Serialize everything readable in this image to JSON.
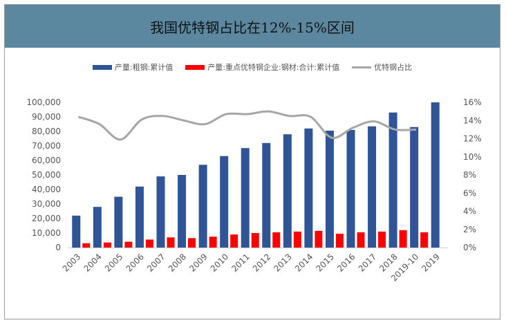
{
  "title": "我国优特钢占比在12%-15%区间",
  "legend": {
    "bar1": "产量:粗钢:累计值",
    "bar2": "产量:重点优特钢企业:钢材:合计:累计值",
    "line": "优特钢占比"
  },
  "colors": {
    "bar1": "#2f5597",
    "bar2": "#ff0000",
    "line": "#a6a6a6",
    "title_band": "#5b879f"
  },
  "chart_data": {
    "type": "bar",
    "categories": [
      "2003",
      "2004",
      "2005",
      "2006",
      "2007",
      "2008",
      "2009",
      "2010",
      "2011",
      "2012",
      "2013",
      "2014",
      "2015",
      "2016",
      "2017",
      "2018",
      "2019-10",
      "2019"
    ],
    "series": [
      {
        "name": "产量:粗钢:累计值",
        "type": "bar",
        "axis": "left",
        "values": [
          22000,
          28000,
          35000,
          42000,
          49000,
          50000,
          57000,
          63000,
          68500,
          72000,
          78000,
          82000,
          80500,
          81000,
          83500,
          93000,
          83000,
          100000
        ]
      },
      {
        "name": "产量:重点优特钢企业:钢材:合计:累计值",
        "type": "bar",
        "axis": "right",
        "values": [
          3000,
          3500,
          4000,
          5500,
          7000,
          6500,
          7500,
          9000,
          10000,
          10500,
          11000,
          11500,
          9500,
          10500,
          11000,
          12000,
          10500,
          null
        ]
      },
      {
        "name": "优特钢占比",
        "type": "line",
        "axis": "right",
        "values": [
          14.4,
          13.6,
          11.9,
          14.1,
          14.5,
          14.0,
          13.6,
          14.7,
          14.7,
          15.0,
          14.5,
          14.4,
          12.1,
          13.2,
          13.9,
          13.0,
          13.0,
          null
        ]
      }
    ],
    "y_left": {
      "ylim": [
        0,
        100000
      ],
      "ticks": [
        "0",
        "10,000",
        "20,000",
        "30,000",
        "40,000",
        "50,000",
        "60,000",
        "70,000",
        "80,000",
        "90,000",
        "100,000"
      ]
    },
    "y_right": {
      "ylim": [
        0,
        16
      ],
      "ticks": [
        "0%",
        "2%",
        "4%",
        "6%",
        "8%",
        "10%",
        "12%",
        "14%",
        "16%"
      ]
    },
    "grid": false,
    "legend_position": "top"
  }
}
